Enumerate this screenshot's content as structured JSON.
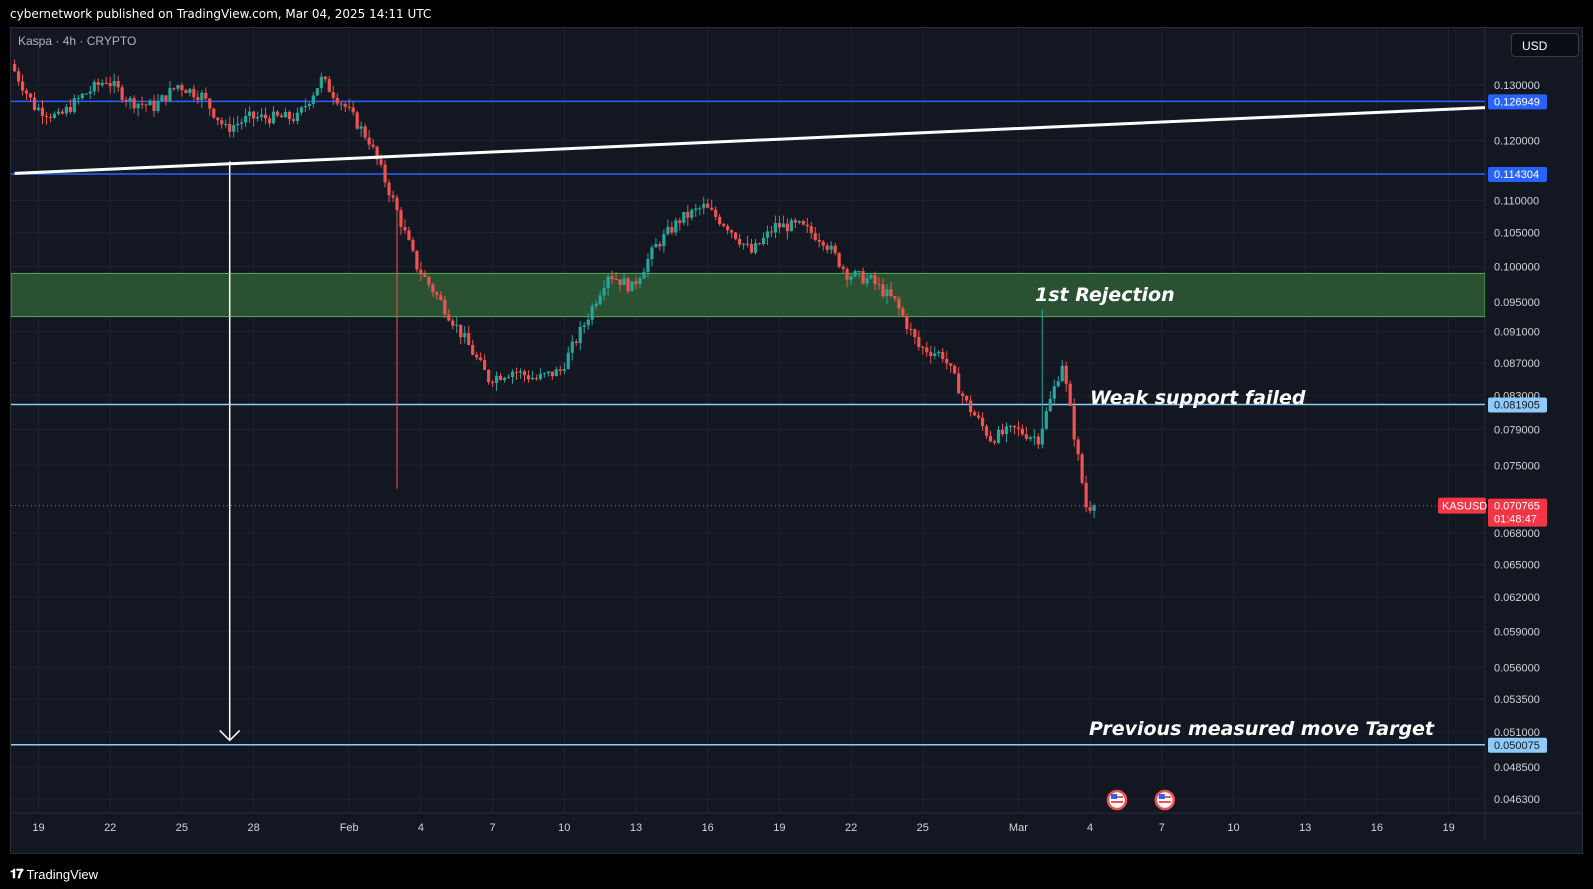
{
  "header": {
    "published": "cybernetwork published on TradingView.com, Mar 04, 2025 14:11 UTC",
    "symbol": "Kaspa · 4h · CRYPTO",
    "currency": "USD"
  },
  "footer": {
    "brand": "TradingView",
    "brand_icon": "tradingview-logo-icon"
  },
  "colors": {
    "background": "#131722",
    "up": "#26a69a",
    "down": "#ef5350",
    "level_line": "#2962ff",
    "support_line": "#90caf9",
    "zone_fill": "#2e5c35",
    "trendline": "#ffffff"
  },
  "chart_data": {
    "type": "candlestick",
    "interval": "4h",
    "y_scale": "log",
    "ylim": [
      0.045,
      0.135
    ],
    "x_labels": [
      "19",
      "22",
      "25",
      "28",
      "Feb",
      "4",
      "7",
      "10",
      "13",
      "16",
      "19",
      "22",
      "25",
      "Mar",
      "4",
      "7",
      "10",
      "13",
      "16",
      "19"
    ],
    "y_ticks": [
      "0.130000",
      "0.120000",
      "0.110000",
      "0.105000",
      "0.100000",
      "0.095000",
      "0.091000",
      "0.087000",
      "0.083000",
      "0.079000",
      "0.075000",
      "0.068000",
      "0.065000",
      "0.062000",
      "0.059000",
      "0.056000",
      "0.053500",
      "0.051000",
      "0.048500",
      "0.046300"
    ],
    "price_path": [
      [
        "Jan 18",
        0.134
      ],
      [
        "Jan 19",
        0.126
      ],
      [
        "Jan 20",
        0.124
      ],
      [
        "Jan 21",
        0.128
      ],
      [
        "Jan 22",
        0.131
      ],
      [
        "Jan 23",
        0.127
      ],
      [
        "Jan 24",
        0.126
      ],
      [
        "Jan 25",
        0.13
      ],
      [
        "Jan 26",
        0.128
      ],
      [
        "Jan 27",
        0.122
      ],
      [
        "Jan 28",
        0.124
      ],
      [
        "Jan 29",
        0.124
      ],
      [
        "Jan 30",
        0.124
      ],
      [
        "Jan 31",
        0.131
      ],
      [
        "Feb 1",
        0.126
      ],
      [
        "Feb 2",
        0.12
      ],
      [
        "Feb 3",
        0.11
      ],
      [
        "Feb 4",
        0.1
      ],
      [
        "Feb 5",
        0.095
      ],
      [
        "Feb 6",
        0.09
      ],
      [
        "Feb 7",
        0.085
      ],
      [
        "Feb 8",
        0.086
      ],
      [
        "Feb 9",
        0.085
      ],
      [
        "Feb 10",
        0.086
      ],
      [
        "Feb 11",
        0.092
      ],
      [
        "Feb 12",
        0.099
      ],
      [
        "Feb 13",
        0.097
      ],
      [
        "Feb 14",
        0.103
      ],
      [
        "Feb 15",
        0.107
      ],
      [
        "Feb 16",
        0.109
      ],
      [
        "Feb 17",
        0.106
      ],
      [
        "Feb 18",
        0.102
      ],
      [
        "Feb 19",
        0.106
      ],
      [
        "Feb 20",
        0.106
      ],
      [
        "Feb 21",
        0.104
      ],
      [
        "Feb 22",
        0.099
      ],
      [
        "Feb 23",
        0.098
      ],
      [
        "Feb 24",
        0.095
      ],
      [
        "Feb 25",
        0.089
      ],
      [
        "Feb 26",
        0.088
      ],
      [
        "Feb 27",
        0.082
      ],
      [
        "Feb 28",
        0.078
      ],
      [
        "Mar 1",
        0.079
      ],
      [
        "Mar 2",
        0.078
      ],
      [
        "Mar 3",
        0.087
      ],
      [
        "Mar 4",
        0.0707
      ]
    ],
    "wick_extremes": [
      {
        "date": "Feb 3",
        "low": 0.0725
      },
      {
        "date": "Mar 2",
        "high": 0.094
      }
    ],
    "horizontal_levels": [
      {
        "price": "0.126949",
        "style": "level"
      },
      {
        "price": "0.114304",
        "style": "level"
      },
      {
        "price": "0.081905",
        "style": "support"
      },
      {
        "price": "0.050075",
        "style": "support"
      }
    ],
    "zone": {
      "from": 0.093,
      "to": 0.099
    },
    "trendline": {
      "start": [
        "Jan 18",
        0.1144
      ],
      "end": [
        "Mar 24",
        0.1265
      ]
    },
    "measured_move_arrow": {
      "date": "Jan 27",
      "from": 0.1164,
      "to": 0.0501
    },
    "current_price": {
      "label": "KASUSD",
      "value": "0.070765",
      "countdown": "01:48:47"
    },
    "annotations": [
      "1st Rejection",
      "Weak support failed",
      "Previous measured move Target"
    ],
    "event_markers": {
      "icon": "us-flag-icon",
      "dates": [
        "Mar 5",
        "Mar 7"
      ]
    }
  }
}
